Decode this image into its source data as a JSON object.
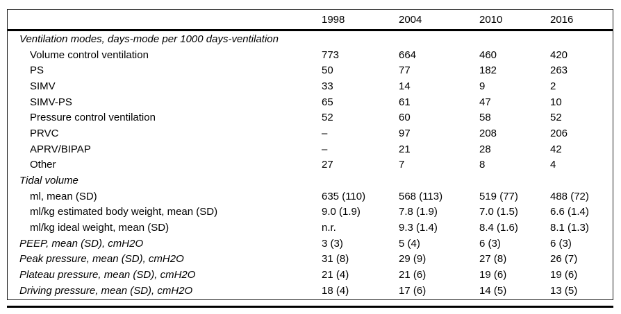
{
  "table": {
    "col_headers": [
      "1998",
      "2004",
      "2010",
      "2016"
    ],
    "rows": [
      {
        "label": "Ventilation modes, days-mode per 1000 days-ventilation",
        "style": "section",
        "values": [
          "",
          "",
          "",
          ""
        ]
      },
      {
        "label": "Volume control ventilation",
        "style": "indent",
        "values": [
          "773",
          "664",
          "460",
          "420"
        ]
      },
      {
        "label": "PS",
        "style": "indent",
        "values": [
          "50",
          "77",
          "182",
          "263"
        ]
      },
      {
        "label": "SIMV",
        "style": "indent",
        "values": [
          "33",
          "14",
          "9",
          "2"
        ]
      },
      {
        "label": "SIMV-PS",
        "style": "indent",
        "values": [
          "65",
          "61",
          "47",
          "10"
        ]
      },
      {
        "label": "Pressure control ventilation",
        "style": "indent",
        "values": [
          "52",
          "60",
          "58",
          "52"
        ]
      },
      {
        "label": "PRVC",
        "style": "indent",
        "values": [
          "–",
          "97",
          "208",
          "206"
        ]
      },
      {
        "label": "APRV/BIPAP",
        "style": "indent",
        "values": [
          "–",
          "21",
          "28",
          "42"
        ]
      },
      {
        "label": "Other",
        "style": "indent",
        "values": [
          "27",
          "7",
          "8",
          "4"
        ]
      },
      {
        "label": "Tidal volume",
        "style": "section",
        "values": [
          "",
          "",
          "",
          ""
        ]
      },
      {
        "label": "ml, mean (SD)",
        "style": "indent",
        "values": [
          "635 (110)",
          "568 (113)",
          "519 (77)",
          "488 (72)"
        ]
      },
      {
        "label": "ml/kg estimated body weight, mean (SD)",
        "style": "indent",
        "values": [
          "9.0 (1.9)",
          "7.8 (1.9)",
          "7.0 (1.5)",
          "6.6 (1.4)"
        ]
      },
      {
        "label": "ml/kg ideal weight, mean (SD)",
        "style": "indent",
        "values": [
          "n.r.",
          "9.3 (1.4)",
          "8.4 (1.6)",
          "8.1 (1.3)"
        ]
      },
      {
        "label": "PEEP, mean (SD), cmH2O",
        "style": "italic-row",
        "values": [
          "3 (3)",
          "5 (4)",
          "6 (3)",
          "6 (3)"
        ]
      },
      {
        "label": "Peak pressure, mean (SD), cmH2O",
        "style": "italic-row",
        "values": [
          "31 (8)",
          "29 (9)",
          "27 (8)",
          "26 (7)"
        ]
      },
      {
        "label": "Plateau pressure, mean (SD), cmH2O",
        "style": "italic-row",
        "values": [
          "21 (4)",
          "21 (6)",
          "19 (6)",
          "19 (6)"
        ]
      },
      {
        "label": "Driving pressure, mean (SD), cmH2O",
        "style": "italic-row",
        "values": [
          "18 (4)",
          "17 (6)",
          "14 (5)",
          "13 (5)"
        ]
      }
    ]
  }
}
